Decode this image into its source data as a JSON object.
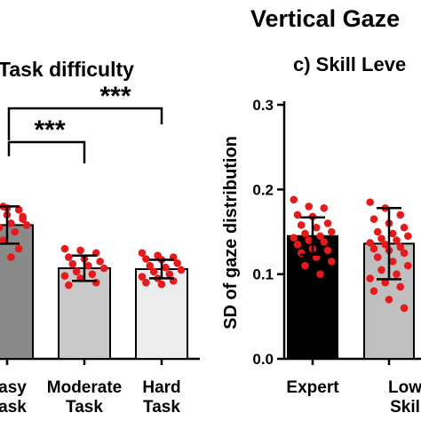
{
  "figure_title": "Vertical Gaze",
  "chart_data": [
    {
      "type": "bar",
      "title": "Task difficulty",
      "categories": [
        "Easy Task",
        "Moderate Task",
        "Hard Task"
      ],
      "category_lines": [
        [
          "asy",
          "ask"
        ],
        [
          "Moderate",
          "Task"
        ],
        [
          "Hard",
          "Task"
        ]
      ],
      "values": [
        0.158,
        0.107,
        0.106
      ],
      "error": [
        0.022,
        0.015,
        0.011
      ],
      "bar_colors": [
        "#8a8a8a",
        "#c9c9c9",
        "#ececec"
      ],
      "points": [
        [
          0.185,
          0.18,
          0.176,
          0.172,
          0.17,
          0.165,
          0.163,
          0.16,
          0.158,
          0.155,
          0.15,
          0.145,
          0.14,
          0.13,
          0.125,
          0.178,
          0.168,
          0.15,
          0.12
        ],
        [
          0.13,
          0.128,
          0.125,
          0.12,
          0.118,
          0.115,
          0.112,
          0.11,
          0.107,
          0.103,
          0.1,
          0.098,
          0.095,
          0.09,
          0.087
        ],
        [
          0.125,
          0.122,
          0.12,
          0.118,
          0.117,
          0.113,
          0.11,
          0.108,
          0.105,
          0.103,
          0.1,
          0.097,
          0.095,
          0.092,
          0.09,
          0.088
        ]
      ],
      "point_color": "#e41a1c",
      "ylim": [
        0,
        0.3
      ],
      "significance": [
        {
          "label": "***",
          "from": 0,
          "to": 1
        },
        {
          "label": "***",
          "from": 0,
          "to": 2
        }
      ]
    },
    {
      "type": "bar",
      "title": "c) Skill Leve",
      "ylabel": "SD of gaze distribution",
      "categories": [
        "Expert",
        "Low Skill"
      ],
      "category_lines": [
        [
          "Expert"
        ],
        [
          "Low",
          "Skil"
        ]
      ],
      "values": [
        0.145,
        0.136
      ],
      "error": [
        0.022,
        0.042
      ],
      "bar_colors": [
        "#000000",
        "#bfbfbf"
      ],
      "points": [
        [
          0.188,
          0.18,
          0.178,
          0.17,
          0.168,
          0.16,
          0.158,
          0.155,
          0.15,
          0.148,
          0.145,
          0.143,
          0.14,
          0.138,
          0.135,
          0.13,
          0.128,
          0.125,
          0.12,
          0.115,
          0.11,
          0.1
        ],
        [
          0.185,
          0.178,
          0.17,
          0.165,
          0.16,
          0.155,
          0.15,
          0.148,
          0.145,
          0.142,
          0.14,
          0.137,
          0.135,
          0.132,
          0.13,
          0.128,
          0.125,
          0.12,
          0.115,
          0.11,
          0.105,
          0.1,
          0.095,
          0.09,
          0.085,
          0.08,
          0.07,
          0.06
        ]
      ],
      "point_color": "#e41a1c",
      "ylim": [
        0,
        0.3
      ],
      "yticks": [
        "0.0",
        "0.1",
        "0.2",
        "0.3"
      ]
    }
  ]
}
